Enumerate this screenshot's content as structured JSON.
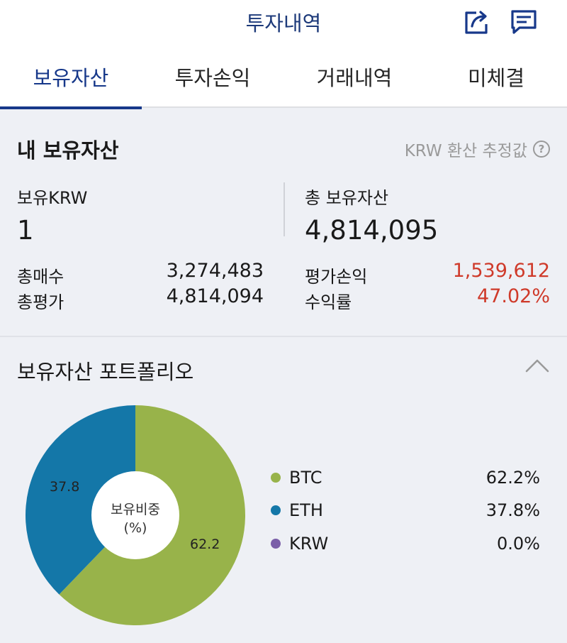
{
  "header": {
    "title": "투자내역",
    "icons": [
      "share-icon",
      "chat-icon"
    ],
    "brand_color": "#17388a"
  },
  "tabs": [
    {
      "label": "보유자산",
      "active": true
    },
    {
      "label": "투자손익",
      "active": false
    },
    {
      "label": "거래내역",
      "active": false
    },
    {
      "label": "미체결",
      "active": false
    }
  ],
  "summary": {
    "title": "내 보유자산",
    "estimate_note": "KRW 환산 추정값",
    "help_symbol": "?",
    "krw_label": "보유KRW",
    "krw_value": "1",
    "total_label": "총 보유자산",
    "total_value": "4,814,095",
    "total_buy_label": "총매수",
    "total_buy_value": "3,274,483",
    "total_eval_label": "총평가",
    "total_eval_value": "4,814,094",
    "pl_label": "평가손익",
    "pl_value": "1,539,612",
    "rate_label": "수익률",
    "rate_value": "47.02%",
    "profit_color": "#cf3a2a"
  },
  "portfolio": {
    "title": "보유자산 포트폴리오",
    "center_line1": "보유비중",
    "center_line2": "(%)",
    "items": [
      {
        "name": "BTC",
        "pct_label": "62.2%",
        "value": 62.2,
        "slice_label": "62.2",
        "color": "#98b34a"
      },
      {
        "name": "ETH",
        "pct_label": "37.8%",
        "value": 37.8,
        "slice_label": "37.8",
        "color": "#1477a8"
      },
      {
        "name": "KRW",
        "pct_label": "0.0%",
        "value": 0.0,
        "slice_label": "",
        "color": "#7a5ea8"
      }
    ]
  }
}
